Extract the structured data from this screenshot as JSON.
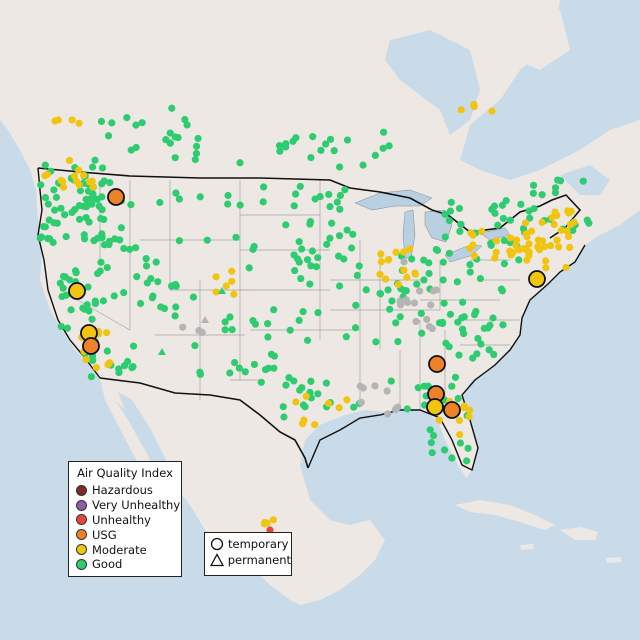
{
  "legend_aqi": {
    "title": "Air Quality Index",
    "items": [
      {
        "label": "Hazardous",
        "color": "#7e2a26"
      },
      {
        "label": "Very Unhealthy",
        "color": "#8f5aa7"
      },
      {
        "label": "Unhealthy",
        "color": "#e8463a"
      },
      {
        "label": "USG",
        "color": "#ee8229"
      },
      {
        "label": "Moderate",
        "color": "#f1c40f"
      },
      {
        "label": "Good",
        "color": "#2ecc71"
      }
    ]
  },
  "legend_type": {
    "items": [
      {
        "label": "temporary",
        "shape": "circle"
      },
      {
        "label": "permanent",
        "shape": "triangle"
      }
    ]
  },
  "colors": {
    "ocean": "#c9dbe9",
    "land": "#ede8e3",
    "lakes": "#b9cfe2",
    "border": "#111111",
    "state_lines": "#a5a5a5",
    "no_data": "#b4b4b4"
  }
}
